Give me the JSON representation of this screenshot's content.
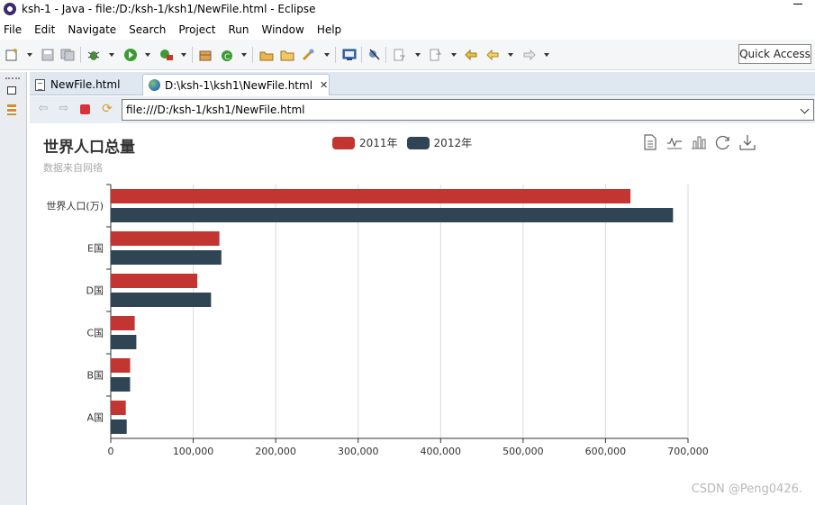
{
  "window": {
    "title": "ksh-1 - Java - file:/D:/ksh-1/ksh1/NewFile.html - Eclipse"
  },
  "menu": [
    "File",
    "Edit",
    "Navigate",
    "Search",
    "Project",
    "Run",
    "Window",
    "Help"
  ],
  "toolbar": {
    "quick_access": "Quick Access"
  },
  "tabs": [
    {
      "label": "NewFile.html",
      "active": false
    },
    {
      "label": "D:\\ksh-1\\ksh1\\NewFile.html",
      "active": true
    }
  ],
  "browser": {
    "url": "file:///D:/ksh-1/ksh1/NewFile.html"
  },
  "chart_data": {
    "type": "bar",
    "orientation": "horizontal",
    "title": "世界人口总量",
    "subtitle": "数据来自网络",
    "categories": [
      "A国",
      "B国",
      "C国",
      "D国",
      "E国",
      "世界人口(万)"
    ],
    "series": [
      {
        "name": "2011年",
        "color": "#c23531",
        "values": [
          18203,
          23489,
          29034,
          104970,
          131744,
          630230
        ]
      },
      {
        "name": "2012年",
        "color": "#2f4554",
        "values": [
          19325,
          23438,
          31000,
          121594,
          134141,
          681807
        ]
      }
    ],
    "xlim": [
      0,
      700000
    ],
    "xticks": [
      "0",
      "100,000",
      "200,000",
      "300,000",
      "400,000",
      "500,000",
      "600,000",
      "700,000"
    ],
    "grid": true,
    "legend_position": "top-center"
  },
  "watermark": "CSDN @Peng0426."
}
